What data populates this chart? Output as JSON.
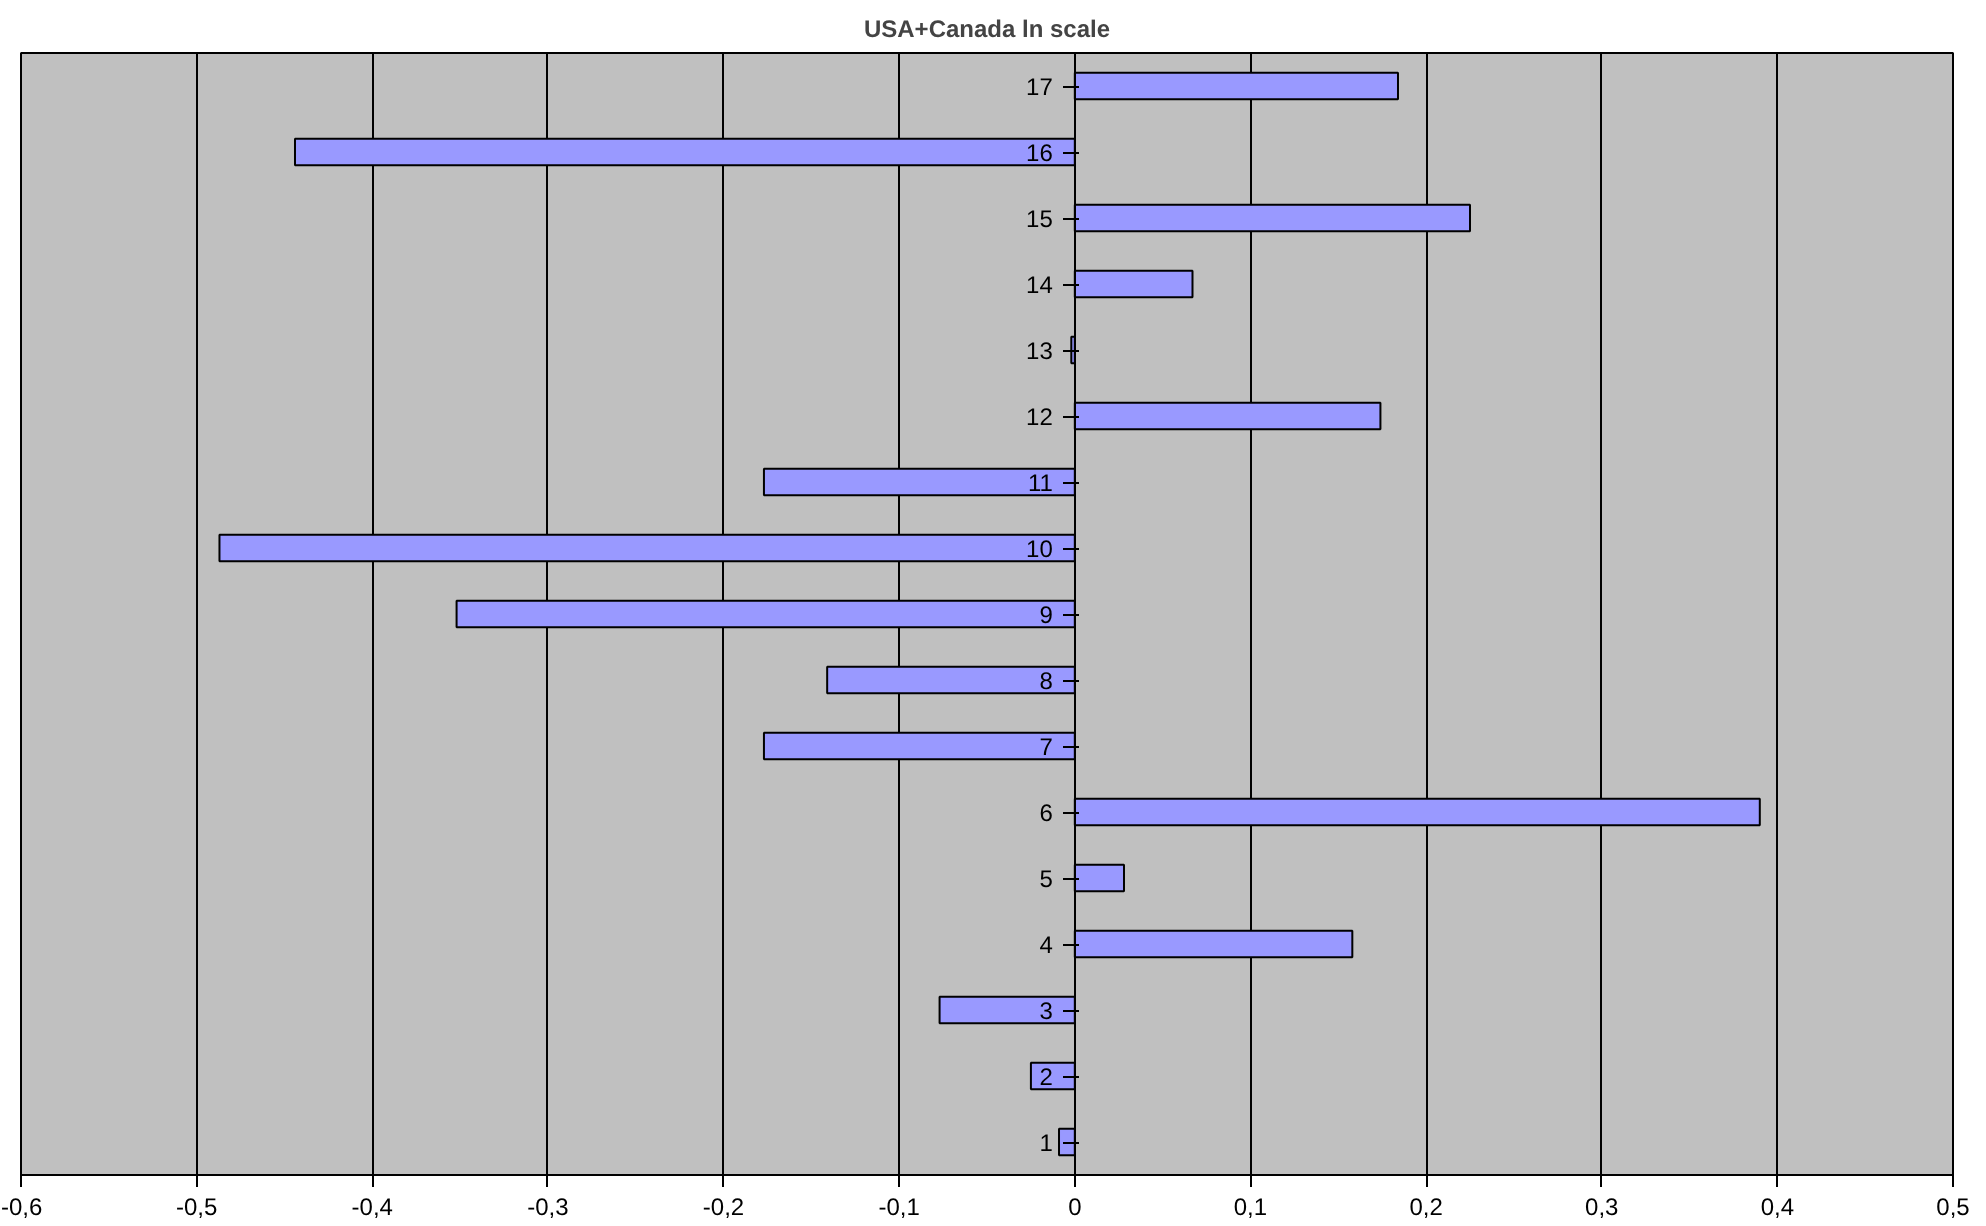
{
  "chart_data": {
    "type": "bar",
    "orientation": "horizontal",
    "title": "USA+Canada ln scale",
    "categories": [
      "17",
      "16",
      "15",
      "14",
      "13",
      "12",
      "11",
      "10",
      "9",
      "8",
      "7",
      "6",
      "5",
      "4",
      "3",
      "2",
      "1"
    ],
    "values": [
      0.184,
      -0.444,
      0.225,
      0.067,
      -0.002,
      0.174,
      -0.177,
      -0.487,
      -0.352,
      -0.141,
      -0.177,
      0.39,
      0.028,
      0.158,
      -0.077,
      -0.025,
      -0.009
    ],
    "color": "#9999ff",
    "xlim": [
      -0.6,
      0.5
    ],
    "xticks": [
      {
        "value": -0.6,
        "label": "-0,6"
      },
      {
        "value": -0.5,
        "label": "-0,5"
      },
      {
        "value": -0.4,
        "label": "-0,4"
      },
      {
        "value": -0.3,
        "label": "-0,3"
      },
      {
        "value": -0.2,
        "label": "-0,2"
      },
      {
        "value": -0.1,
        "label": "-0,1"
      },
      0,
      {
        "value": 0.1,
        "label": "0,1"
      },
      {
        "value": 0.2,
        "label": "0,2"
      },
      {
        "value": 0.3,
        "label": "0,3"
      },
      {
        "value": 0.4,
        "label": "0,4"
      },
      {
        "value": 0.5,
        "label": "0,5"
      }
    ],
    "grid": "x"
  }
}
